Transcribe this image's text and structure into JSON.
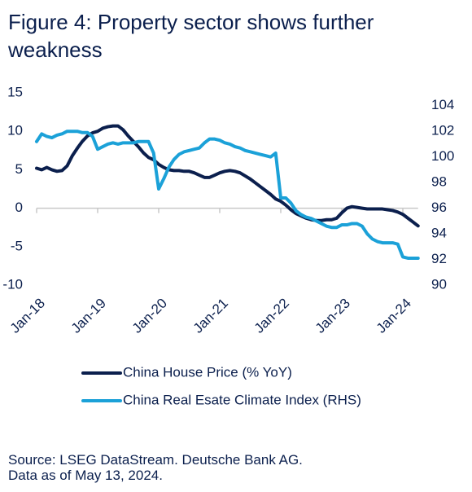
{
  "chart_data": {
    "type": "line",
    "title": "Figure 4: Property sector shows further weakness",
    "categories": [
      "Jan-18",
      null,
      null,
      null,
      null,
      null,
      null,
      null,
      null,
      null,
      null,
      null,
      "Jan-19",
      null,
      null,
      null,
      null,
      null,
      null,
      null,
      null,
      null,
      null,
      null,
      "Jan-20",
      null,
      null,
      null,
      null,
      null,
      null,
      null,
      null,
      null,
      null,
      null,
      "Jan-21",
      null,
      null,
      null,
      null,
      null,
      null,
      null,
      null,
      null,
      null,
      null,
      "Jan-22",
      null,
      null,
      null,
      null,
      null,
      null,
      null,
      null,
      null,
      null,
      null,
      "Jan-23",
      null,
      null,
      null,
      null,
      null,
      null,
      null,
      null,
      null,
      null,
      null,
      "Jan-24",
      null,
      null,
      null
    ],
    "series": [
      {
        "name": "China House Price (% YoY)",
        "color": "#0b1f4d",
        "values": [
          5.2,
          5.0,
          5.3,
          5.0,
          4.8,
          4.9,
          5.5,
          6.8,
          7.8,
          8.7,
          9.4,
          9.8,
          10.0,
          10.4,
          10.6,
          10.7,
          10.7,
          10.2,
          9.4,
          8.7,
          8.0,
          7.2,
          6.6,
          6.3,
          5.7,
          5.3,
          5.0,
          4.9,
          4.9,
          4.8,
          4.8,
          4.6,
          4.3,
          4.0,
          4.0,
          4.3,
          4.6,
          4.8,
          4.9,
          4.8,
          4.6,
          4.2,
          3.8,
          3.3,
          2.8,
          2.3,
          1.8,
          1.2,
          0.9,
          0.4,
          -0.2,
          -0.7,
          -1.0,
          -1.3,
          -1.5,
          -1.6,
          -1.6,
          -1.5,
          -1.5,
          -1.3,
          -0.6,
          0.0,
          0.2,
          0.1,
          0.0,
          -0.1,
          -0.1,
          -0.1,
          -0.1,
          -0.2,
          -0.3,
          -0.5,
          -0.8,
          -1.3,
          -1.8,
          -2.3
        ]
      },
      {
        "name": "China Real Esate Climate Index (RHS)",
        "color": "#1ba1d8",
        "axis": "y2",
        "values": [
          101.2,
          101.8,
          101.6,
          101.5,
          101.7,
          101.8,
          102.0,
          102.0,
          102.0,
          101.9,
          101.9,
          101.6,
          100.6,
          100.8,
          101.0,
          101.1,
          101.0,
          101.1,
          101.1,
          101.1,
          101.2,
          101.2,
          101.2,
          100.3,
          97.5,
          98.3,
          99.2,
          99.8,
          100.2,
          100.4,
          100.5,
          100.6,
          100.7,
          101.1,
          101.4,
          101.4,
          101.3,
          101.1,
          101.0,
          100.8,
          100.7,
          100.5,
          100.4,
          100.3,
          100.2,
          100.1,
          100.0,
          100.3,
          96.8,
          96.8,
          96.4,
          95.8,
          95.5,
          95.3,
          95.2,
          95.0,
          94.8,
          94.6,
          94.5,
          94.5,
          94.7,
          94.7,
          94.8,
          94.8,
          94.6,
          94.0,
          93.6,
          93.4,
          93.3,
          93.3,
          93.3,
          93.2,
          92.2,
          92.1,
          92.1,
          92.1
        ]
      }
    ],
    "ylim": [
      -10,
      15
    ],
    "yticks": [
      15,
      10,
      5,
      0,
      -5,
      -10
    ],
    "y2lim": [
      90,
      105
    ],
    "y2ticks": [
      104,
      102,
      100,
      98,
      96,
      94,
      92,
      90
    ],
    "source": [
      "Source: LSEG DataStream. Deutsche Bank AG.",
      "Data as of May 13, 2024."
    ]
  }
}
